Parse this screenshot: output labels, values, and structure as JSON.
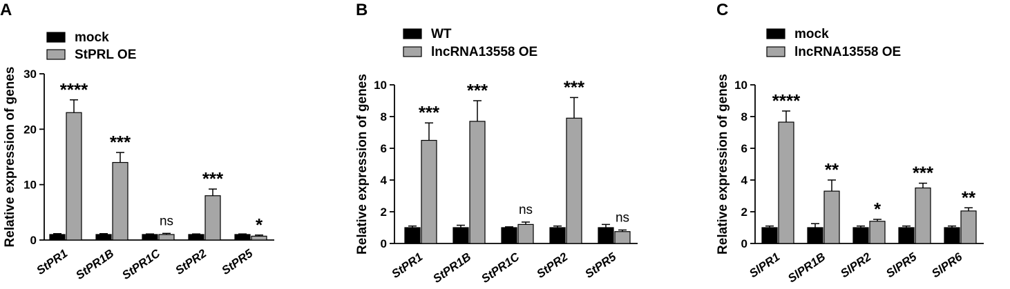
{
  "chart_data": [
    {
      "panel": "A",
      "type": "bar",
      "ylabel": "Relative expression of genes",
      "ylim": [
        0,
        30
      ],
      "yticks": [
        0,
        10,
        20,
        30
      ],
      "legend_position": "top-left",
      "categories": [
        "StPR1",
        "StPR1B",
        "StPR1C",
        "StPR2",
        "StPR5"
      ],
      "series": [
        {
          "name": "mock",
          "color": "#000000",
          "values": [
            1.0,
            1.0,
            1.0,
            1.0,
            1.0
          ],
          "errors": [
            0.15,
            0.15,
            0.1,
            0.1,
            0.1
          ]
        },
        {
          "name": "StPRL OE",
          "color": "#a6a6a6",
          "values": [
            23.0,
            14.0,
            1.0,
            8.0,
            0.7
          ],
          "errors": [
            2.3,
            1.8,
            0.2,
            1.2,
            0.2
          ]
        }
      ],
      "significance": [
        "****",
        "***",
        "ns",
        "***",
        "*"
      ]
    },
    {
      "panel": "B",
      "type": "bar",
      "ylabel": "Relative expression of genes",
      "ylim": [
        0,
        10
      ],
      "yticks": [
        0,
        2,
        4,
        6,
        8,
        10
      ],
      "legend_position": "top-left",
      "categories": [
        "StPR1",
        "StPR1B",
        "StPR1C",
        "StPR2",
        "StPR5"
      ],
      "series": [
        {
          "name": "WT",
          "color": "#000000",
          "values": [
            1.0,
            1.0,
            1.0,
            1.0,
            1.0
          ],
          "errors": [
            0.1,
            0.15,
            0.05,
            0.1,
            0.2
          ]
        },
        {
          "name": "lncRNA13558 OE",
          "color": "#a6a6a6",
          "values": [
            6.5,
            7.7,
            1.2,
            7.9,
            0.75
          ],
          "errors": [
            1.1,
            1.3,
            0.15,
            1.3,
            0.1
          ]
        }
      ],
      "significance": [
        "***",
        "***",
        "ns",
        "***",
        "ns"
      ]
    },
    {
      "panel": "C",
      "type": "bar",
      "ylabel": "Relative expression of genes",
      "ylim": [
        0,
        10
      ],
      "yticks": [
        0,
        2,
        4,
        6,
        8,
        10
      ],
      "legend_position": "top-left",
      "categories": [
        "SlPR1",
        "SlPR1B",
        "SlPR2",
        "SlPR5",
        "SlPR6"
      ],
      "series": [
        {
          "name": "mock",
          "color": "#000000",
          "values": [
            1.0,
            1.0,
            1.0,
            1.0,
            1.0
          ],
          "errors": [
            0.1,
            0.25,
            0.1,
            0.1,
            0.1
          ]
        },
        {
          "name": "lncRNA13558 OE",
          "color": "#a6a6a6",
          "values": [
            7.65,
            3.3,
            1.4,
            3.5,
            2.05
          ],
          "errors": [
            0.7,
            0.7,
            0.12,
            0.3,
            0.2
          ]
        }
      ],
      "significance": [
        "****",
        "**",
        "*",
        "***",
        "**"
      ]
    }
  ]
}
